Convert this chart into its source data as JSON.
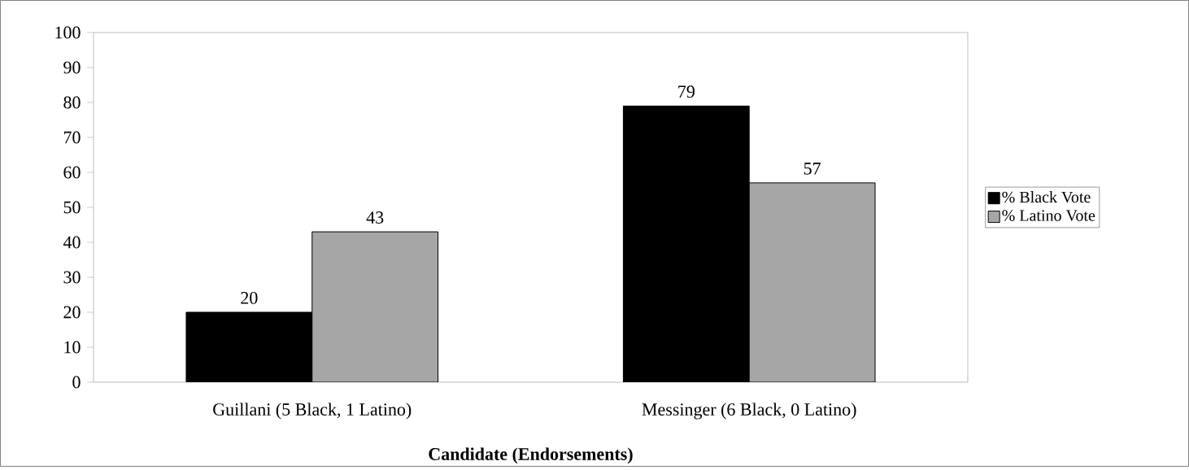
{
  "chart_data": {
    "type": "bar",
    "xlabel": "Candidate (Endorsements)",
    "categories": [
      "Guillani (5 Black, 1 Latino)",
      "Messinger (6 Black, 0 Latino)"
    ],
    "series": [
      {
        "name": "%  Black Vote",
        "color": "#000000",
        "values": [
          20,
          79
        ]
      },
      {
        "name": "%  Latino Vote",
        "color": "#a6a6a6",
        "values": [
          43,
          57
        ]
      }
    ],
    "ylim": [
      0,
      100
    ],
    "yticks": [
      0,
      10,
      20,
      30,
      40,
      50,
      60,
      70,
      80,
      90,
      100
    ],
    "data_labels": true,
    "legend": "right"
  }
}
